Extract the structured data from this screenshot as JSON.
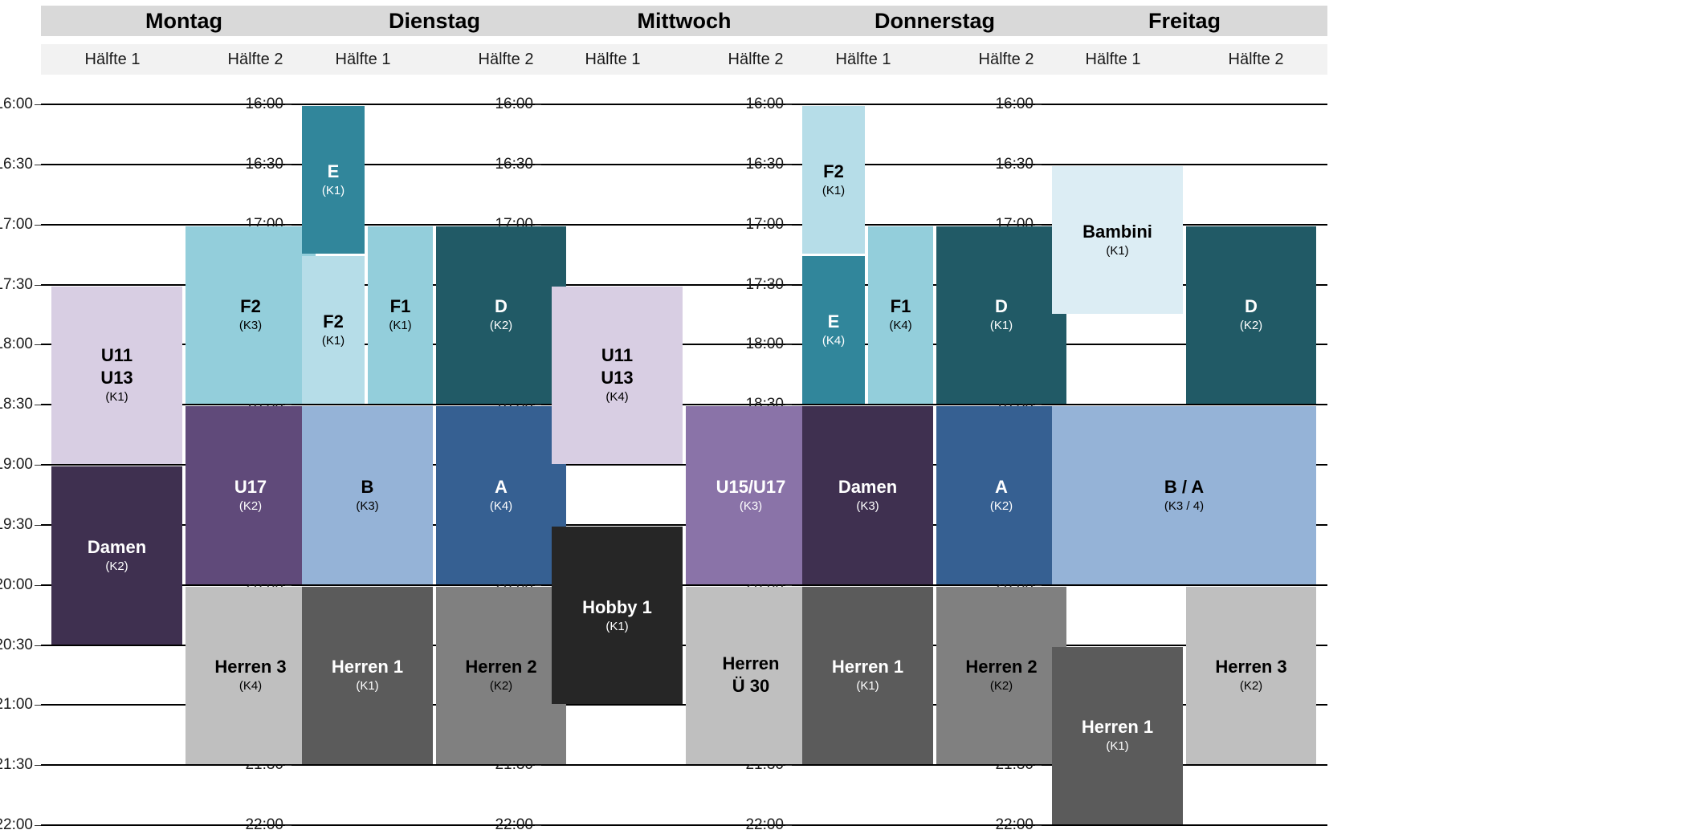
{
  "chart_data": {
    "type": "timetable",
    "days": [
      "Montag",
      "Dienstag",
      "Mittwoch",
      "Donnerstag",
      "Freitag"
    ],
    "halves": [
      "Hälfte 1",
      "Hälfte 2"
    ],
    "time_start": "16:00",
    "time_end": "22:00",
    "times": [
      "16:00",
      "16:30",
      "17:00",
      "17:30",
      "18:00",
      "18:30",
      "19:00",
      "19:30",
      "20:00",
      "20:30",
      "21:00",
      "21:30",
      "22:00"
    ],
    "grid": true,
    "sessions": [
      {
        "day": 0,
        "half": "1",
        "team": "U11\nU13",
        "court": "(K1)",
        "start": "17:30",
        "end": "19:00",
        "color": "#d8cee3",
        "text_color": "#000000"
      },
      {
        "day": 0,
        "half": "1",
        "team": "Damen",
        "court": "(K2)",
        "start": "19:00",
        "end": "20:30",
        "color": "#3f3050",
        "text_color": "#ffffff"
      },
      {
        "day": 0,
        "half": "2",
        "team": "F2",
        "court": "(K3)",
        "start": "17:00",
        "end": "18:30",
        "color": "#93cedb",
        "text_color": "#000000"
      },
      {
        "day": 0,
        "half": "2",
        "team": "U17",
        "court": "(K2)",
        "start": "18:30",
        "end": "20:00",
        "color": "#604a7a",
        "text_color": "#ffffff"
      },
      {
        "day": 0,
        "half": "2",
        "team": "Herren 3",
        "court": "(K4)",
        "start": "20:00",
        "end": "21:30",
        "color": "#bfbfbf",
        "text_color": "#000000"
      },
      {
        "day": 1,
        "half": "1a",
        "team": "E",
        "court": "(K1)",
        "start": "16:00",
        "end": "17:15",
        "color": "#31869b",
        "text_color": "#ffffff"
      },
      {
        "day": 1,
        "half": "1a",
        "team": "F2",
        "court": "(K1)",
        "start": "17:15",
        "end": "18:30",
        "color": "#b6dde8",
        "text_color": "#000000"
      },
      {
        "day": 1,
        "half": "1b",
        "team": "F1",
        "court": "(K1)",
        "start": "17:00",
        "end": "18:30",
        "color": "#93cedb",
        "text_color": "#000000"
      },
      {
        "day": 1,
        "half": "2",
        "team": "D",
        "court": "(K2)",
        "start": "17:00",
        "end": "18:30",
        "color": "#215a66",
        "text_color": "#ffffff"
      },
      {
        "day": 1,
        "half": "1",
        "team": "B",
        "court": "(K3)",
        "start": "18:30",
        "end": "20:00",
        "color": "#95b3d7",
        "text_color": "#000000"
      },
      {
        "day": 1,
        "half": "2",
        "team": "A",
        "court": "(K4)",
        "start": "18:30",
        "end": "20:00",
        "color": "#366092",
        "text_color": "#ffffff"
      },
      {
        "day": 1,
        "half": "1",
        "team": "Herren 1",
        "court": "(K1)",
        "start": "20:00",
        "end": "21:30",
        "color": "#5b5b5b",
        "text_color": "#ffffff"
      },
      {
        "day": 1,
        "half": "2",
        "team": "Herren 2",
        "court": "(K2)",
        "start": "20:00",
        "end": "21:30",
        "color": "#808080",
        "text_color": "#000000"
      },
      {
        "day": 2,
        "half": "1",
        "team": "U11\nU13",
        "court": "(K4)",
        "start": "17:30",
        "end": "19:00",
        "color": "#d8cee3",
        "text_color": "#000000"
      },
      {
        "day": 2,
        "half": "1",
        "team": "Hobby 1",
        "court": "(K1)",
        "start": "19:30",
        "end": "21:00",
        "color": "#262626",
        "text_color": "#ffffff"
      },
      {
        "day": 2,
        "half": "2",
        "team": "U15/U17",
        "court": "(K3)",
        "start": "18:30",
        "end": "20:00",
        "color": "#8a73a8",
        "text_color": "#ffffff"
      },
      {
        "day": 2,
        "half": "2",
        "team": "Herren\nÜ 30",
        "court": "",
        "start": "20:00",
        "end": "21:30",
        "color": "#bfbfbf",
        "text_color": "#000000"
      },
      {
        "day": 3,
        "half": "1a",
        "team": "F2",
        "court": "(K1)",
        "start": "16:00",
        "end": "17:15",
        "color": "#b6dde8",
        "text_color": "#000000"
      },
      {
        "day": 3,
        "half": "1a",
        "team": "E",
        "court": "(K4)",
        "start": "17:15",
        "end": "18:30",
        "color": "#31869b",
        "text_color": "#ffffff"
      },
      {
        "day": 3,
        "half": "1b",
        "team": "F1",
        "court": "(K4)",
        "start": "17:00",
        "end": "18:30",
        "color": "#93cedb",
        "text_color": "#000000"
      },
      {
        "day": 3,
        "half": "2",
        "team": "D",
        "court": "(K1)",
        "start": "17:00",
        "end": "18:30",
        "color": "#215a66",
        "text_color": "#ffffff"
      },
      {
        "day": 3,
        "half": "1",
        "team": "Damen",
        "court": "(K3)",
        "start": "18:30",
        "end": "20:00",
        "color": "#3f3050",
        "text_color": "#ffffff"
      },
      {
        "day": 3,
        "half": "2",
        "team": "A",
        "court": "(K2)",
        "start": "18:30",
        "end": "20:00",
        "color": "#366092",
        "text_color": "#ffffff"
      },
      {
        "day": 3,
        "half": "1",
        "team": "Herren 1",
        "court": "(K1)",
        "start": "20:00",
        "end": "21:30",
        "color": "#5b5b5b",
        "text_color": "#ffffff"
      },
      {
        "day": 3,
        "half": "2",
        "team": "Herren 2",
        "court": "(K2)",
        "start": "20:00",
        "end": "21:30",
        "color": "#808080",
        "text_color": "#000000"
      },
      {
        "day": 4,
        "half": "1",
        "team": "Bambini",
        "court": "(K1)",
        "start": "16:30",
        "end": "17:45",
        "color": "#dcedf4",
        "text_color": "#000000"
      },
      {
        "day": 4,
        "half": "2",
        "team": "D",
        "court": "(K2)",
        "start": "17:00",
        "end": "18:30",
        "color": "#215a66",
        "text_color": "#ffffff"
      },
      {
        "day": 4,
        "half": "both",
        "team": "B / A",
        "court": "(K3 / 4)",
        "start": "18:30",
        "end": "20:00",
        "color": "#95b3d7",
        "text_color": "#000000"
      },
      {
        "day": 4,
        "half": "1",
        "team": "Herren 1",
        "court": "(K1)",
        "start": "20:30",
        "end": "22:00",
        "color": "#5b5b5b",
        "text_color": "#ffffff"
      },
      {
        "day": 4,
        "half": "2",
        "team": "Herren 3",
        "court": "(K2)",
        "start": "20:00",
        "end": "21:30",
        "color": "#bfbfbf",
        "text_color": "#000000"
      }
    ]
  }
}
